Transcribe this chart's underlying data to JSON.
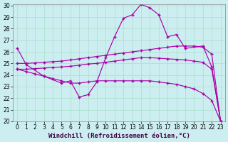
{
  "x_main": [
    0,
    1,
    3,
    5,
    6,
    7,
    8,
    9,
    10,
    11,
    12,
    13,
    14,
    15,
    16,
    17,
    18,
    19,
    21,
    22,
    23
  ],
  "y_main": [
    26.3,
    24.9,
    23.9,
    23.3,
    23.5,
    22.1,
    22.3,
    23.4,
    25.5,
    27.3,
    28.9,
    29.2,
    30.1,
    29.8,
    29.2,
    27.3,
    27.5,
    26.3,
    26.5,
    24.7,
    20.0
  ],
  "x_line2": [
    0,
    1,
    2,
    3,
    4,
    5,
    6,
    7,
    8,
    9,
    10,
    11,
    12,
    13,
    14,
    15,
    16,
    17,
    18,
    19,
    20,
    21,
    22,
    23
  ],
  "y_line2": [
    25.0,
    25.0,
    25.05,
    25.1,
    25.15,
    25.2,
    25.3,
    25.4,
    25.5,
    25.6,
    25.7,
    25.8,
    25.9,
    26.0,
    26.1,
    26.2,
    26.3,
    26.4,
    26.5,
    26.5,
    26.5,
    26.4,
    25.8,
    20.0
  ],
  "x_line3": [
    0,
    1,
    2,
    3,
    4,
    5,
    6,
    7,
    8,
    9,
    10,
    11,
    12,
    13,
    14,
    15,
    16,
    17,
    18,
    19,
    20,
    21,
    22,
    23
  ],
  "y_line3": [
    24.5,
    24.5,
    24.55,
    24.6,
    24.65,
    24.7,
    24.75,
    24.85,
    24.95,
    25.0,
    25.1,
    25.2,
    25.3,
    25.4,
    25.5,
    25.5,
    25.45,
    25.4,
    25.35,
    25.3,
    25.2,
    25.1,
    24.5,
    20.0
  ],
  "x_line4": [
    0,
    1,
    2,
    3,
    4,
    5,
    6,
    7,
    8,
    9,
    10,
    11,
    12,
    13,
    14,
    15,
    16,
    17,
    18,
    19,
    20,
    21,
    22,
    23
  ],
  "y_line4": [
    24.5,
    24.3,
    24.1,
    23.9,
    23.7,
    23.5,
    23.3,
    23.3,
    23.4,
    23.5,
    23.5,
    23.5,
    23.5,
    23.5,
    23.5,
    23.5,
    23.4,
    23.3,
    23.2,
    23.0,
    22.8,
    22.4,
    21.8,
    20.0
  ],
  "xlim": [
    -0.5,
    23.5
  ],
  "ylim": [
    20,
    30.1
  ],
  "yticks": [
    20,
    21,
    22,
    23,
    24,
    25,
    26,
    27,
    28,
    29,
    30
  ],
  "xticks": [
    0,
    1,
    2,
    3,
    4,
    5,
    6,
    7,
    8,
    9,
    10,
    11,
    12,
    13,
    14,
    15,
    16,
    17,
    18,
    19,
    20,
    21,
    22,
    23
  ],
  "xlabel": "Windchill (Refroidissement éolien,°C)",
  "bg_color": "#cceef0",
  "grid_color": "#aaddcc",
  "line_color": "#aa00aa",
  "tick_fontsize": 5.5,
  "xlabel_fontsize": 6.5
}
